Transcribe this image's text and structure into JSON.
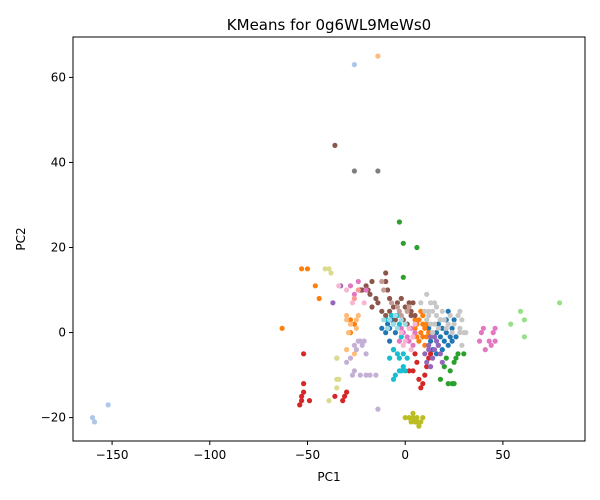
{
  "chart_data": {
    "type": "scatter",
    "title": "KMeans for 0g6WL9MeWs0",
    "xlabel": "PC1",
    "ylabel": "PC2",
    "xlim": [
      -170,
      92
    ],
    "ylim": [
      -25.5,
      69.5
    ],
    "xticks": [
      -150,
      -100,
      -50,
      0,
      50
    ],
    "xtick_labels": [
      "−150",
      "−100",
      "−50",
      "0",
      "50"
    ],
    "yticks": [
      -20,
      0,
      20,
      40,
      60
    ],
    "ytick_labels": [
      "−20",
      "0",
      "20",
      "40",
      "60"
    ],
    "grid": false,
    "legend": "none",
    "series": [
      {
        "color": "#1f77b4",
        "points": [
          [
            -12,
            1
          ],
          [
            -10,
            0
          ],
          [
            -9,
            2
          ],
          [
            -8,
            -2
          ],
          [
            -8,
            1
          ],
          [
            -6,
            -4
          ],
          [
            -5,
            0
          ],
          [
            -7,
            3
          ],
          [
            15,
            -1
          ],
          [
            16,
            0
          ],
          [
            17,
            2
          ],
          [
            18,
            -1
          ],
          [
            19,
            1
          ],
          [
            20,
            -2
          ],
          [
            21,
            0
          ],
          [
            22,
            -3
          ],
          [
            23,
            -1
          ],
          [
            24,
            1
          ],
          [
            25,
            3
          ],
          [
            26,
            -1
          ],
          [
            17,
            -3
          ],
          [
            18,
            3
          ],
          [
            19,
            -4
          ],
          [
            22,
            5
          ],
          [
            12,
            1
          ],
          [
            13,
            -2
          ],
          [
            14,
            -4
          ],
          [
            16,
            -5
          ],
          [
            24,
            -2
          ],
          [
            21,
            3
          ]
        ]
      },
      {
        "color": "#ff7f0e",
        "points": [
          [
            -53,
            15
          ],
          [
            -50,
            15
          ],
          [
            -46,
            11
          ],
          [
            -44,
            8
          ],
          [
            -63,
            1
          ],
          [
            -28,
            3
          ],
          [
            -26,
            2
          ],
          [
            -28,
            0
          ],
          [
            4,
            -1
          ],
          [
            5,
            1
          ],
          [
            6,
            2
          ],
          [
            7,
            3
          ],
          [
            8,
            0
          ],
          [
            9,
            -1
          ],
          [
            10,
            1
          ],
          [
            11,
            2
          ],
          [
            7,
            -2
          ],
          [
            9,
            4
          ],
          [
            10,
            -3
          ],
          [
            8,
            5
          ],
          [
            6,
            -1
          ],
          [
            11,
            -1
          ],
          [
            12,
            0
          ],
          [
            5,
            3
          ],
          [
            9,
            2
          ]
        ]
      },
      {
        "color": "#2ca02c",
        "points": [
          [
            -3,
            26
          ],
          [
            -1,
            21
          ],
          [
            6,
            20
          ],
          [
            -1,
            13
          ],
          [
            22,
            -12
          ],
          [
            24,
            -12
          ],
          [
            25,
            -12
          ],
          [
            23,
            -9
          ],
          [
            26,
            -6
          ],
          [
            25,
            -7
          ],
          [
            27,
            -5
          ],
          [
            20,
            -8
          ],
          [
            21,
            -6
          ],
          [
            18,
            -11
          ],
          [
            30,
            -5
          ]
        ]
      },
      {
        "color": "#d62728",
        "points": [
          [
            -52,
            -5
          ],
          [
            -52,
            -12
          ],
          [
            -52,
            -14
          ],
          [
            -53,
            -15
          ],
          [
            -54,
            -17
          ],
          [
            -53,
            -16
          ],
          [
            -49,
            -16
          ],
          [
            -36,
            -15
          ],
          [
            -32,
            -16
          ],
          [
            -31,
            -15
          ],
          [
            -30,
            -14
          ],
          [
            4,
            -9
          ],
          [
            6,
            -7
          ],
          [
            7,
            -11
          ],
          [
            8,
            -13
          ],
          [
            9,
            -12
          ],
          [
            10,
            -10
          ],
          [
            11,
            -8
          ],
          [
            12,
            -6
          ],
          [
            2,
            -9
          ],
          [
            5,
            -5
          ],
          [
            13,
            -5
          ]
        ]
      },
      {
        "color": "#9467bd",
        "points": [
          [
            -37,
            7
          ],
          [
            -33,
            11
          ],
          [
            10,
            -5
          ],
          [
            12,
            -3
          ],
          [
            13,
            -1
          ],
          [
            14,
            -6
          ],
          [
            15,
            -4
          ],
          [
            16,
            -2
          ],
          [
            17,
            -3
          ],
          [
            18,
            -5
          ],
          [
            19,
            -7
          ],
          [
            11,
            -7
          ],
          [
            13,
            -8
          ],
          [
            15,
            -1
          ],
          [
            12,
            -4
          ]
        ]
      },
      {
        "color": "#8c564b",
        "points": [
          [
            -36,
            44
          ],
          [
            -23,
            10
          ],
          [
            -22,
            10
          ],
          [
            -20,
            11
          ],
          [
            -19,
            10
          ],
          [
            -17,
            12
          ],
          [
            -18,
            9
          ],
          [
            -15,
            8
          ],
          [
            -10,
            14
          ],
          [
            -10,
            12
          ],
          [
            -9,
            10
          ],
          [
            -8,
            8
          ],
          [
            -17,
            6
          ],
          [
            -14,
            7
          ],
          [
            -12,
            5
          ],
          [
            -10,
            4
          ],
          [
            -8,
            5
          ],
          [
            -6,
            6
          ],
          [
            -4,
            7
          ],
          [
            -2,
            8
          ],
          [
            0,
            6
          ],
          [
            2,
            7
          ],
          [
            3,
            5
          ],
          [
            -1,
            3
          ],
          [
            1,
            2
          ],
          [
            3,
            4
          ],
          [
            5,
            4
          ],
          [
            4,
            7
          ],
          [
            -5,
            3
          ]
        ]
      },
      {
        "color": "#e377c2",
        "points": [
          [
            -28,
            11
          ],
          [
            -24,
            12
          ],
          [
            -26,
            9
          ],
          [
            -20,
            10
          ],
          [
            -3,
            -2
          ],
          [
            -1,
            0
          ],
          [
            1,
            -1
          ],
          [
            3,
            1
          ],
          [
            5,
            0
          ],
          [
            2,
            -2
          ],
          [
            -2,
            1
          ],
          [
            4,
            -3
          ],
          [
            38,
            -2
          ],
          [
            39,
            0
          ],
          [
            40,
            1
          ],
          [
            43,
            -2
          ],
          [
            45,
            0
          ],
          [
            46,
            1
          ],
          [
            46,
            -2
          ],
          [
            44,
            -3
          ],
          [
            41,
            -4
          ]
        ]
      },
      {
        "color": "#7f7f7f",
        "points": [
          [
            -26,
            38
          ],
          [
            -14,
            38
          ]
        ]
      },
      {
        "color": "#bcbd22",
        "points": [
          [
            0,
            -20
          ],
          [
            2,
            -20
          ],
          [
            3,
            -21
          ],
          [
            4,
            -20
          ],
          [
            5,
            -21
          ],
          [
            6,
            -21
          ],
          [
            7,
            -22
          ],
          [
            8,
            -21
          ],
          [
            9,
            -20
          ],
          [
            4,
            -19
          ],
          [
            6,
            -20
          ]
        ]
      },
      {
        "color": "#17becf",
        "points": [
          [
            -9,
            3
          ],
          [
            -7,
            4
          ],
          [
            -6,
            2
          ],
          [
            -4,
            4
          ],
          [
            -3,
            2
          ],
          [
            -2,
            -1
          ],
          [
            -1,
            -5
          ],
          [
            -3,
            -6
          ],
          [
            -4,
            -5
          ],
          [
            -6,
            -4
          ],
          [
            -8,
            -6
          ],
          [
            -5,
            -10
          ],
          [
            -3,
            -9
          ],
          [
            -6,
            -11
          ],
          [
            1,
            -6
          ],
          [
            -2,
            -9
          ],
          [
            -1,
            -8
          ],
          [
            0,
            -9
          ]
        ]
      },
      {
        "color": "#aec7e8",
        "points": [
          [
            -160,
            -20
          ],
          [
            -159,
            -21
          ],
          [
            -152,
            -17
          ],
          [
            -26,
            63
          ]
        ]
      },
      {
        "color": "#ffbb78",
        "points": [
          [
            -14,
            65
          ],
          [
            -30,
            4
          ],
          [
            -30,
            3
          ],
          [
            -28,
            2
          ],
          [
            -25,
            3
          ],
          [
            -24,
            4
          ],
          [
            -30,
            -4
          ],
          [
            -26,
            -5
          ],
          [
            -29,
            0
          ],
          [
            -25,
            1
          ]
        ]
      },
      {
        "color": "#98df8a",
        "points": [
          [
            54,
            2
          ],
          [
            59,
            5
          ],
          [
            61,
            3
          ],
          [
            61,
            -1
          ],
          [
            79,
            7
          ]
        ]
      },
      {
        "color": "#ff9896",
        "points": [
          [
            -26,
            8
          ],
          [
            -24,
            10
          ]
        ]
      },
      {
        "color": "#c5b0d5",
        "points": [
          [
            -35,
            -6
          ],
          [
            -30,
            -7
          ],
          [
            -26,
            -3
          ],
          [
            -24,
            -2
          ],
          [
            -22,
            -3
          ],
          [
            -21,
            -2
          ],
          [
            -20,
            -5
          ],
          [
            -27,
            -10
          ],
          [
            -26,
            -9
          ],
          [
            -23,
            -10
          ],
          [
            -20,
            -10
          ],
          [
            -18,
            -10
          ],
          [
            -15,
            -10
          ],
          [
            -14,
            -18
          ],
          [
            -28,
            -6
          ],
          [
            -25,
            -4
          ],
          [
            -23,
            -2
          ]
        ]
      },
      {
        "color": "#c49c94",
        "points": [
          [
            -12,
            12
          ],
          [
            -11,
            10
          ],
          [
            -7,
            7
          ],
          [
            -4,
            6
          ],
          [
            -2,
            4
          ],
          [
            1,
            5
          ],
          [
            2,
            6
          ],
          [
            -3,
            5
          ]
        ]
      },
      {
        "color": "#f7b6d2",
        "points": [
          [
            -34,
            11
          ],
          [
            -30,
            10
          ],
          [
            -27,
            7
          ],
          [
            -21,
            7
          ],
          [
            -2,
            0
          ],
          [
            0,
            -2
          ],
          [
            2,
            1
          ],
          [
            4,
            -1
          ],
          [
            -1,
            -3
          ],
          [
            3,
            -4
          ],
          [
            5,
            2
          ]
        ]
      },
      {
        "color": "#c7c7c7",
        "points": [
          [
            8,
            7
          ],
          [
            11,
            9
          ],
          [
            13,
            7
          ],
          [
            15,
            7
          ],
          [
            14,
            5
          ],
          [
            16,
            6
          ],
          [
            12,
            4
          ],
          [
            13,
            2
          ],
          [
            14,
            0
          ],
          [
            15,
            2
          ],
          [
            16,
            4
          ],
          [
            17,
            1
          ],
          [
            18,
            3
          ],
          [
            19,
            5
          ],
          [
            20,
            3
          ],
          [
            21,
            1
          ],
          [
            22,
            2
          ],
          [
            23,
            4
          ],
          [
            24,
            0
          ],
          [
            25,
            2
          ],
          [
            27,
            4
          ],
          [
            28,
            5
          ],
          [
            29,
            3
          ],
          [
            28,
            0
          ],
          [
            30,
            0
          ],
          [
            31,
            0
          ],
          [
            29,
            -3
          ],
          [
            28,
            1
          ],
          [
            12,
            5
          ],
          [
            11,
            3
          ],
          [
            10,
            5
          ]
        ]
      },
      {
        "color": "#dbdb8d",
        "points": [
          [
            -41,
            15
          ],
          [
            -39,
            15
          ],
          [
            -38,
            14
          ],
          [
            -35,
            -6
          ],
          [
            -35,
            -11
          ],
          [
            -35,
            -13
          ],
          [
            -34,
            -11
          ],
          [
            -39,
            -16
          ]
        ]
      },
      {
        "color": "#9edae5",
        "points": [
          [
            -11,
            3
          ],
          [
            -8,
            3
          ],
          [
            -6,
            2
          ],
          [
            -4,
            1
          ],
          [
            -2,
            3
          ],
          [
            0,
            2
          ],
          [
            -5,
            4
          ],
          [
            -9,
            1
          ]
        ]
      }
    ]
  }
}
